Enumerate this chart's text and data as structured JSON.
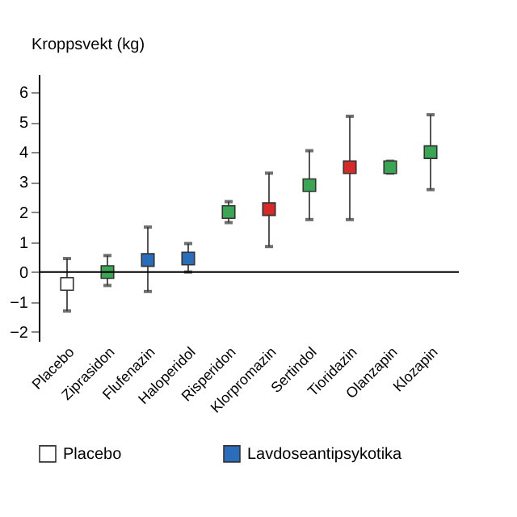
{
  "chart_data": {
    "type": "scatter",
    "ylabel": "Kroppsvekt (kg)",
    "categories": [
      "Placebo",
      "Ziprasidon",
      "Flufenazin",
      "Haloperidol",
      "Risperidon",
      "Klorpromazin",
      "Sertindol",
      "Tioridazin",
      "Olanzapin",
      "Klozapin"
    ],
    "series": [
      {
        "name": "Placebo",
        "color": "#ffffff",
        "values": [
          -0.4,
          null,
          null,
          null,
          null,
          null,
          null,
          null,
          null,
          null
        ],
        "errors": [
          [
            -1.3,
            0.45
          ],
          null,
          null,
          null,
          null,
          null,
          null,
          null,
          null,
          null
        ]
      },
      {
        "name": "Lavdoseantipsykotika",
        "color": "#2a6ebb",
        "values": [
          null,
          null,
          0.4,
          0.45,
          null,
          null,
          null,
          null,
          null,
          null
        ],
        "errors": [
          null,
          null,
          [
            -0.65,
            1.5
          ],
          [
            0.0,
            0.95
          ],
          null,
          null,
          null,
          null,
          null,
          null
        ]
      },
      {
        "color": "#3aa655",
        "values": [
          null,
          0.0,
          null,
          null,
          2.0,
          null,
          2.9,
          null,
          3.5,
          4.0
        ],
        "errors": [
          null,
          [
            -0.45,
            0.55
          ],
          null,
          null,
          [
            1.65,
            2.35
          ],
          null,
          [
            1.75,
            4.05
          ],
          null,
          [
            3.3,
            3.7
          ],
          [
            2.75,
            5.25
          ]
        ]
      },
      {
        "color": "#d42a2a",
        "values": [
          null,
          null,
          null,
          null,
          null,
          2.1,
          null,
          3.5,
          null,
          null
        ],
        "errors": [
          null,
          null,
          null,
          null,
          null,
          [
            0.85,
            3.3
          ],
          null,
          [
            1.75,
            5.2
          ],
          null,
          null
        ]
      }
    ],
    "ylim": [
      -2.3,
      6.6
    ],
    "yticks": [
      -2,
      -1,
      0,
      1,
      2,
      3,
      4,
      5,
      6
    ],
    "ref_lines": [
      {
        "axis": "y",
        "value": 0,
        "color": "#000000"
      }
    ],
    "marker": "square",
    "grid": false,
    "legend": "bottom"
  }
}
